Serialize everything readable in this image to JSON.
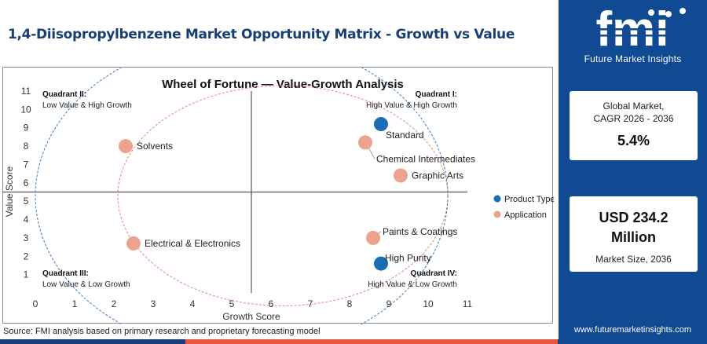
{
  "page": {
    "title": "1,4-Diisopropylbenzene Market Opportunity Matrix - Growth vs Value",
    "source": "Source: FMI analysis based on primary research and proprietary forecasting model"
  },
  "brand": {
    "logo_text": "fmi",
    "logo_subtitle": "Future Market Insights",
    "website": "www.futuremarketinsights.com"
  },
  "stats": {
    "cagr_label_line1": "Global Market,",
    "cagr_label_line2": "CAGR 2026 - 2036",
    "cagr_value": "5.4%",
    "size_value_line1": "USD 234.2",
    "size_value_line2": "Million",
    "size_label": "Market Size, 2036"
  },
  "colors": {
    "product_type": "#1b6db3",
    "application": "#eca28c",
    "panel": "#0f4a92",
    "title": "#163f73"
  },
  "chart_data": {
    "type": "scatter",
    "title": "Wheel of Fortune — Value-Growth Analysis",
    "xlabel": "Growth Score",
    "ylabel": "Value Score",
    "xlim": [
      0,
      11
    ],
    "ylim": [
      0,
      11
    ],
    "x_ticks": [
      0,
      1,
      2,
      3,
      4,
      5,
      6,
      7,
      8,
      9,
      10,
      11
    ],
    "y_ticks": [
      1,
      2,
      3,
      4,
      5,
      6,
      7,
      8,
      9,
      10,
      11
    ],
    "divider": {
      "x": 5.5,
      "y": 5.5
    },
    "grid": false,
    "legend": {
      "position": "right",
      "entries": [
        "Product Type",
        "Application"
      ]
    },
    "quadrants": [
      {
        "title": "Quadrant II:",
        "subtitle": "Low Value & High Growth",
        "position": "top-left"
      },
      {
        "title": "Quadrant I:",
        "subtitle": "High Value & High Growth",
        "position": "top-right"
      },
      {
        "title": "Quadrant III:",
        "subtitle": "Low Value & Low Growth",
        "position": "bottom-left"
      },
      {
        "title": "Quadrant IV:",
        "subtitle": "High Value & Low Growth",
        "position": "bottom-right"
      }
    ],
    "series": [
      {
        "name": "Product Type",
        "points": [
          {
            "label": "Standard",
            "x": 8.8,
            "y": 9.2
          },
          {
            "label": "High Purity",
            "x": 8.8,
            "y": 1.6
          }
        ]
      },
      {
        "name": "Application",
        "points": [
          {
            "label": "Solvents",
            "x": 2.3,
            "y": 8.0
          },
          {
            "label": "Chemical Intermediates",
            "x": 8.4,
            "y": 8.2
          },
          {
            "label": "Graphic Arts",
            "x": 9.3,
            "y": 6.4
          },
          {
            "label": "Paints & Coatings",
            "x": 8.6,
            "y": 3.0
          },
          {
            "label": "Electrical & Electronics",
            "x": 2.5,
            "y": 2.7
          }
        ]
      }
    ]
  }
}
